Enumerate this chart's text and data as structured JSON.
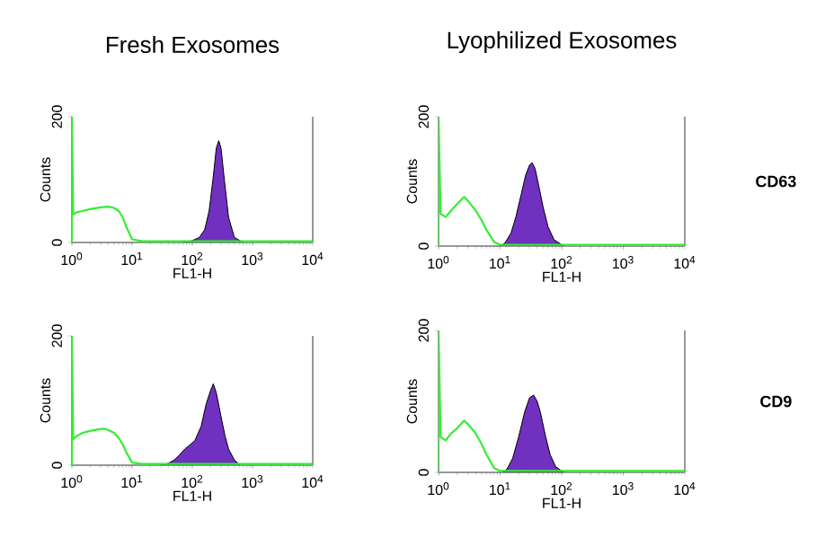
{
  "chart_data": [
    {
      "type": "area",
      "title": "Fresh Exosomes",
      "xlabel": "FL1-H",
      "ylabel": "Counts",
      "log": "x",
      "xlim": [
        1,
        10000
      ],
      "ylim": [
        0,
        200
      ],
      "xticks": [
        {
          "value": 1,
          "label": "10$^{0}$"
        },
        {
          "value": 10,
          "label": "10$^{1}$"
        },
        {
          "value": 100,
          "label": "10$^{2}$"
        },
        {
          "value": 1000,
          "label": "10$^{3}$"
        },
        {
          "value": 10000,
          "label": "10$^{4}$"
        }
      ],
      "yticks": [
        0,
        200
      ],
      "series": [
        {
          "color": "#7030c0",
          "x": [
            70,
            100,
            130,
            160,
            190,
            220,
            250,
            275,
            300,
            340,
            400,
            500,
            700
          ],
          "values": [
            0,
            3,
            8,
            20,
            50,
            100,
            150,
            162,
            150,
            100,
            40,
            8,
            0
          ]
        },
        {
          "type": "line",
          "color": "#33ee33",
          "x": [
            1,
            1,
            1.05,
            1.2,
            1.5,
            2,
            3,
            4,
            5,
            6,
            7,
            8,
            10,
            15,
            30,
            100,
            300,
            1000,
            10000
          ],
          "values": [
            0,
            200,
            45,
            48,
            50,
            53,
            56,
            57,
            55,
            50,
            40,
            25,
            5,
            2,
            2,
            2,
            2,
            2,
            2
          ]
        }
      ]
    },
    {
      "type": "area",
      "title": "Lyophilized Exosomes",
      "xlabel": "FL1-H",
      "ylabel": "Counts",
      "log": "x",
      "xlim": [
        1,
        10000
      ],
      "ylim": [
        0,
        200
      ],
      "annotations": [
        "**CD63**"
      ],
      "xticks": [
        {
          "value": 1,
          "label": "10$^{0}$"
        },
        {
          "value": 10,
          "label": "10$^{1}$"
        },
        {
          "value": 100,
          "label": "10$^{2}$"
        },
        {
          "value": 1000,
          "label": "10$^{3}$"
        },
        {
          "value": 10000,
          "label": "10$^{4}$"
        }
      ],
      "yticks": [
        0,
        200
      ],
      "series": [
        {
          "color": "#7030c0",
          "x": [
            10,
            12,
            15,
            18,
            22,
            26,
            30,
            33,
            37,
            42,
            50,
            60,
            75,
            100,
            110
          ],
          "values": [
            0,
            5,
            20,
            45,
            80,
            110,
            125,
            129,
            120,
            95,
            60,
            30,
            10,
            2,
            0
          ]
        },
        {
          "type": "line",
          "color": "#33ee33",
          "x": [
            1,
            1,
            1.08,
            1.3,
            1.6,
            2,
            2.6,
            3,
            4,
            5,
            6,
            7,
            8,
            10,
            30,
            100,
            1000,
            10000
          ],
          "values": [
            0,
            200,
            50,
            45,
            55,
            65,
            76,
            70,
            55,
            40,
            25,
            15,
            6,
            2,
            2,
            2,
            2,
            2
          ]
        }
      ]
    },
    {
      "type": "area",
      "xlabel": "FL1-H",
      "ylabel": "Counts",
      "log": "x",
      "xlim": [
        1,
        10000
      ],
      "ylim": [
        0,
        200
      ],
      "xticks": [
        {
          "value": 1,
          "label": "10$^{0}$"
        },
        {
          "value": 10,
          "label": "10$^{1}$"
        },
        {
          "value": 100,
          "label": "10$^{2}$"
        },
        {
          "value": 1000,
          "label": "10$^{3}$"
        },
        {
          "value": 10000,
          "label": "10$^{4}$"
        }
      ],
      "yticks": [
        0,
        200
      ],
      "series": [
        {
          "color": "#7030c0",
          "x": [
            30,
            40,
            50,
            60,
            75,
            90,
            110,
            140,
            170,
            200,
            223,
            250,
            300,
            350,
            400,
            500,
            620
          ],
          "values": [
            0,
            3,
            8,
            15,
            25,
            31,
            38,
            60,
            95,
            115,
            126,
            112,
            75,
            45,
            25,
            8,
            0
          ]
        },
        {
          "type": "line",
          "color": "#33ee33",
          "x": [
            1,
            1,
            1.05,
            1.2,
            1.5,
            2,
            3,
            3.7,
            5,
            6,
            7,
            8,
            10,
            15,
            100,
            10000
          ],
          "values": [
            0,
            200,
            40,
            45,
            50,
            53,
            56,
            56,
            50,
            42,
            32,
            20,
            4,
            2,
            2,
            2
          ]
        }
      ]
    },
    {
      "type": "area",
      "xlabel": "FL1-H",
      "ylabel": "Counts",
      "log": "x",
      "xlim": [
        1,
        10000
      ],
      "ylim": [
        0,
        200
      ],
      "annotations": [
        "**CD9**"
      ],
      "xticks": [
        {
          "value": 1,
          "label": "10$^{0}$"
        },
        {
          "value": 10,
          "label": "10$^{1}$"
        },
        {
          "value": 100,
          "label": "10$^{2}$"
        },
        {
          "value": 1000,
          "label": "10$^{3}$"
        },
        {
          "value": 10000,
          "label": "10$^{4}$"
        }
      ],
      "yticks": [
        0,
        200
      ],
      "series": [
        {
          "color": "#7030c0",
          "x": [
            11,
            13,
            16,
            20,
            25,
            30,
            35,
            40,
            45,
            55,
            65,
            80,
            100,
            110
          ],
          "values": [
            0,
            5,
            20,
            50,
            85,
            105,
            109,
            100,
            85,
            50,
            25,
            8,
            2,
            0
          ]
        },
        {
          "type": "line",
          "color": "#33ee33",
          "x": [
            1,
            1,
            1.08,
            1.3,
            1.6,
            2,
            2.6,
            3,
            4,
            5,
            6,
            7,
            8,
            10,
            100,
            10000
          ],
          "values": [
            0,
            200,
            50,
            45,
            55,
            62,
            73,
            68,
            55,
            40,
            25,
            15,
            6,
            2,
            2,
            2
          ]
        }
      ]
    }
  ]
}
